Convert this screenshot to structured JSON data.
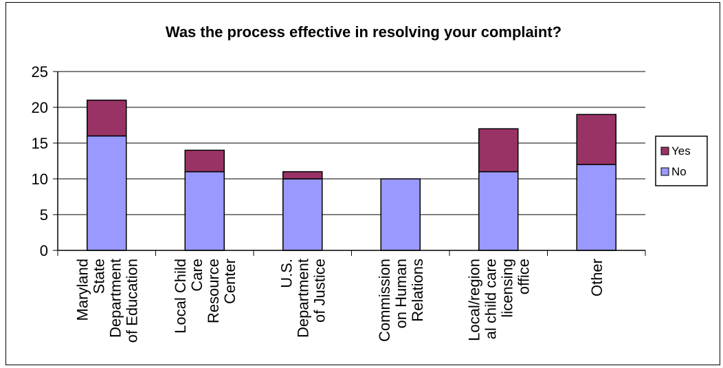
{
  "chart_data": {
    "type": "bar",
    "stacked": true,
    "title": "Was the process effective in resolving your complaint?",
    "categories": [
      [
        "Maryland",
        "State",
        "Department",
        "of Education"
      ],
      [
        "Local Child",
        "Care",
        "Resource",
        "Center"
      ],
      [
        "U.S.",
        "Department",
        "of Justice"
      ],
      [
        "Commission",
        "on Human",
        "Relations"
      ],
      [
        "Local/region",
        "al child care",
        "licensing",
        "office"
      ],
      [
        "Other"
      ]
    ],
    "series": [
      {
        "name": "No",
        "color": "#9999ff",
        "values": [
          16,
          11,
          10,
          10,
          11,
          12
        ]
      },
      {
        "name": "Yes",
        "color": "#993366",
        "values": [
          5,
          3,
          1,
          0,
          6,
          7
        ]
      }
    ],
    "yticks": [
      "0",
      "5",
      "10",
      "15",
      "20",
      "25"
    ],
    "ylim": [
      0,
      25
    ],
    "grid": true,
    "legend_position": "right",
    "legend_order": [
      "Yes",
      "No"
    ]
  }
}
